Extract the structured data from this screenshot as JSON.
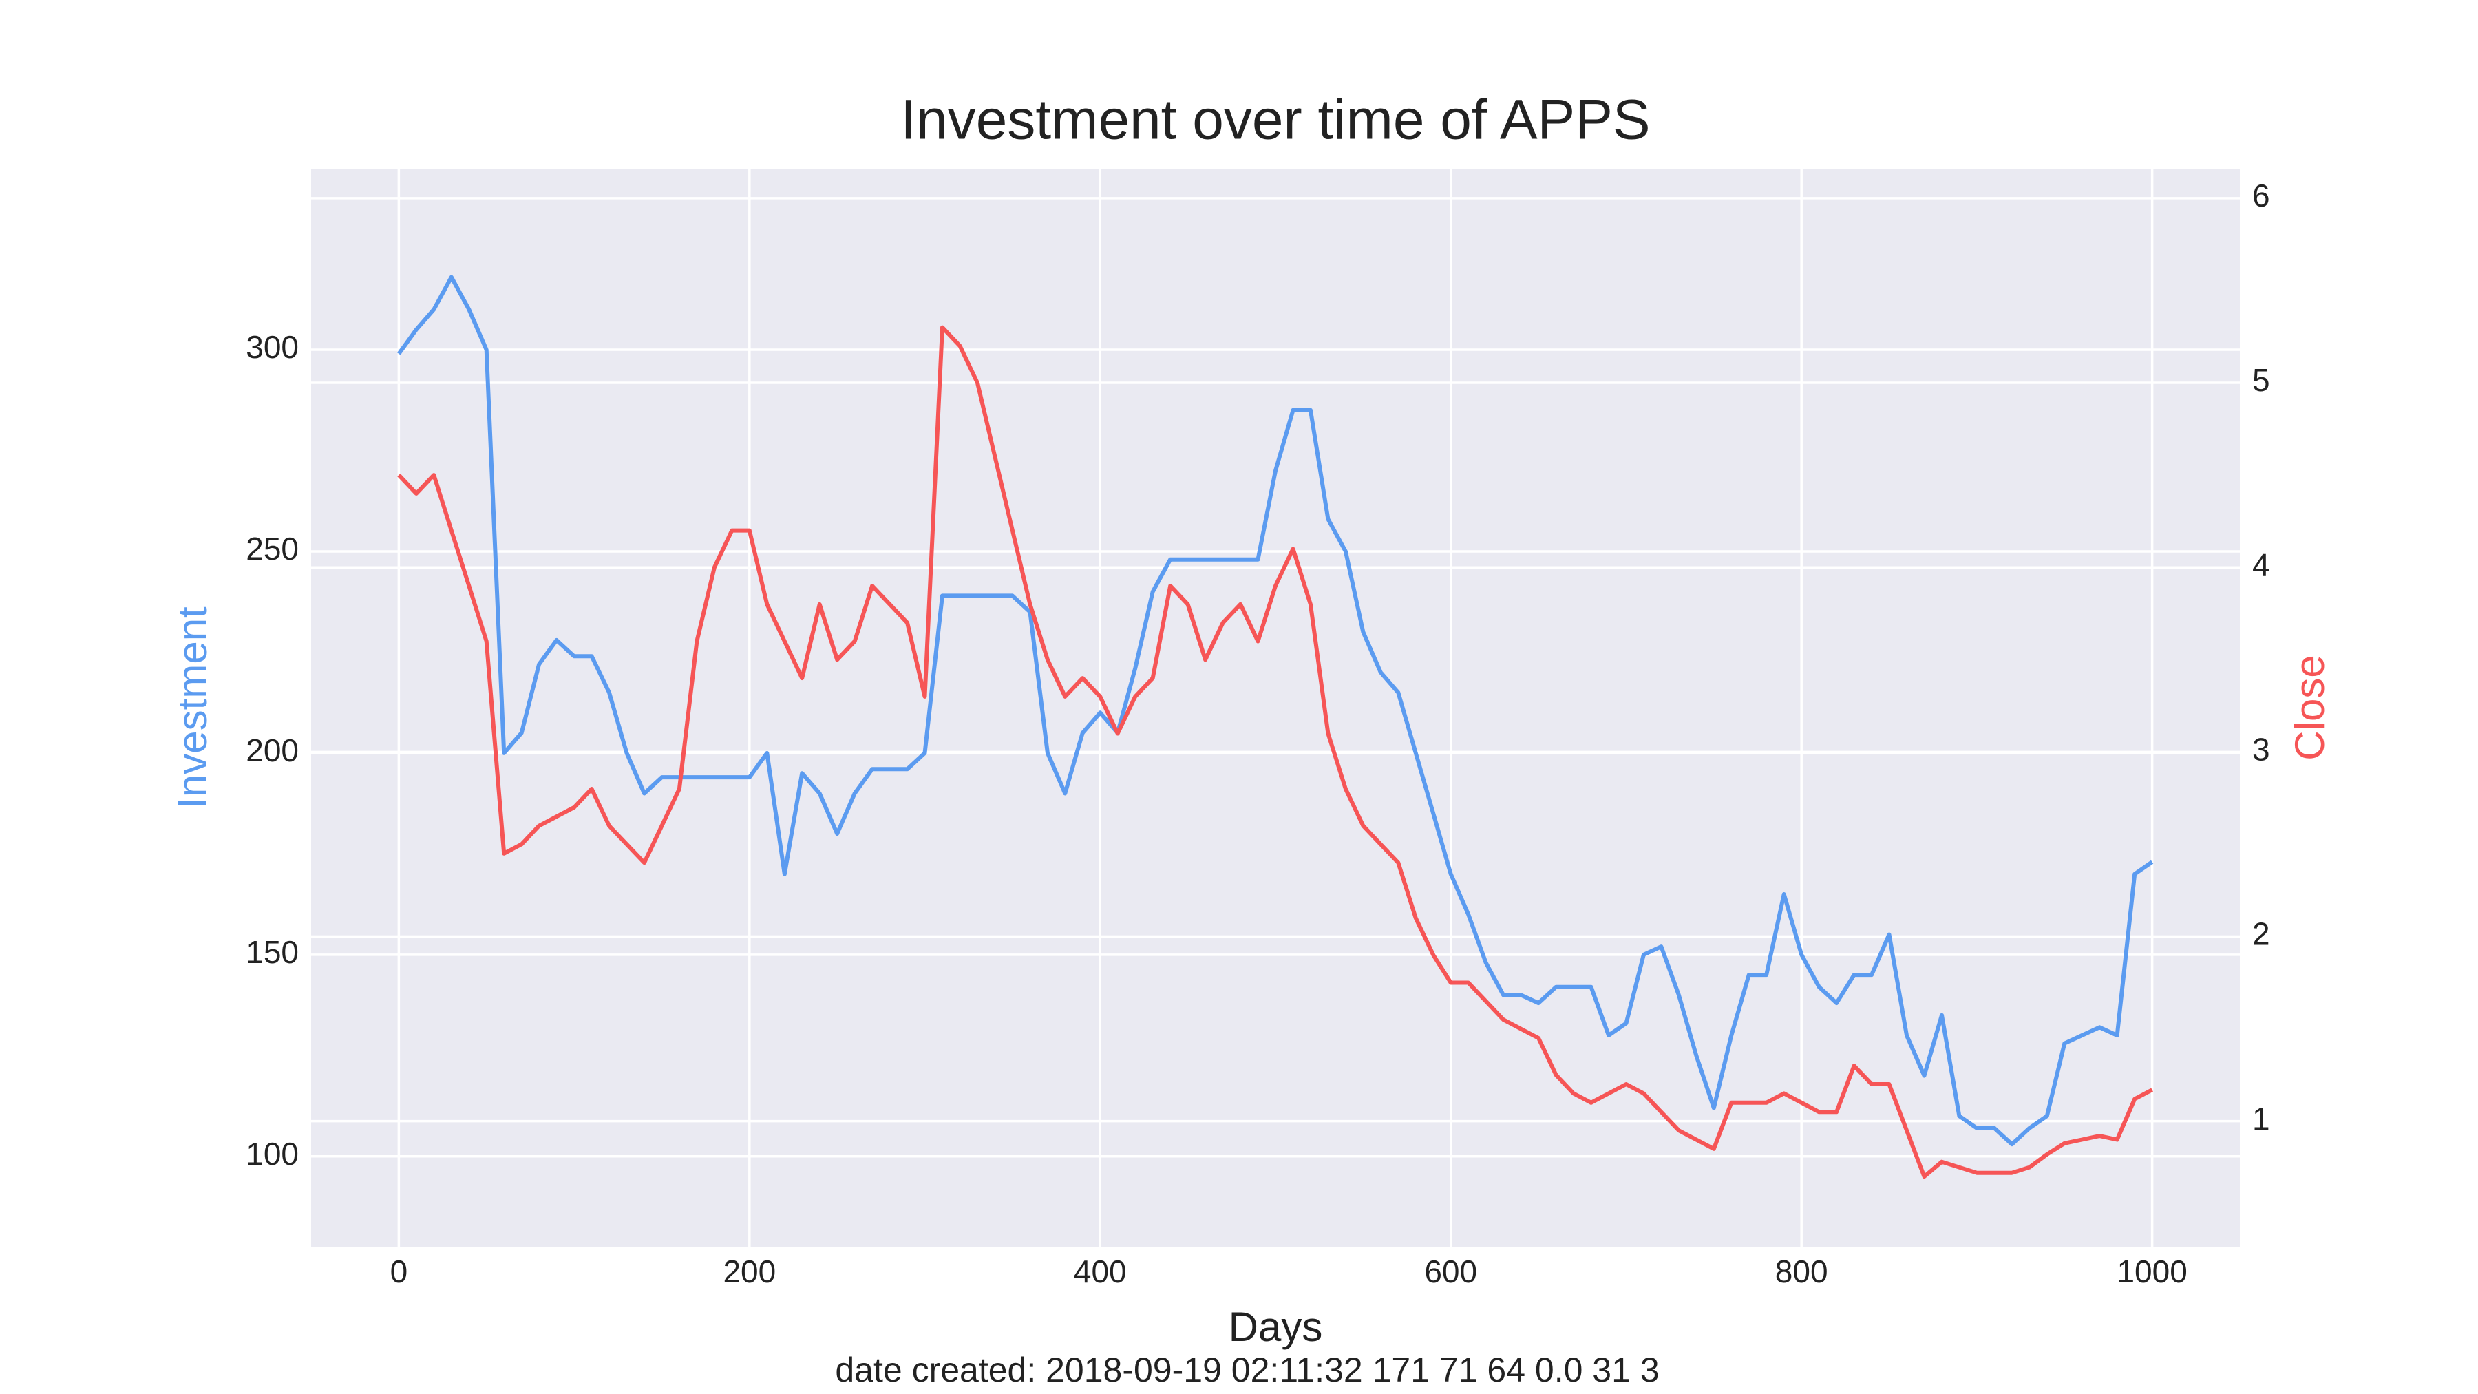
{
  "chart_data": {
    "type": "line",
    "title": "Investment over time of APPS",
    "xlabel": "Days",
    "ylabel": "Investment",
    "y2label": "Close",
    "footnote": "date created: 2018-09-19 02:11:32 171 71 64 0.0 31 3",
    "x": [
      0,
      10,
      20,
      30,
      40,
      50,
      60,
      70,
      80,
      90,
      100,
      110,
      120,
      130,
      140,
      150,
      160,
      170,
      180,
      190,
      200,
      210,
      220,
      230,
      240,
      250,
      260,
      270,
      280,
      290,
      300,
      310,
      320,
      330,
      340,
      350,
      360,
      370,
      380,
      390,
      400,
      410,
      420,
      430,
      440,
      450,
      460,
      470,
      480,
      490,
      500,
      510,
      520,
      530,
      540,
      550,
      560,
      570,
      580,
      590,
      600,
      610,
      620,
      630,
      640,
      650,
      660,
      670,
      680,
      690,
      700,
      710,
      720,
      730,
      740,
      750,
      760,
      770,
      780,
      790,
      800,
      810,
      820,
      830,
      840,
      850,
      860,
      870,
      880,
      890,
      900,
      910,
      920,
      930,
      940,
      950,
      960,
      970,
      980,
      990,
      1000
    ],
    "series": [
      {
        "name": "Investment",
        "color": "#5b9bf0",
        "axis": "y",
        "values": [
          299,
          305,
          310,
          318,
          310,
          300,
          200,
          205,
          222,
          228,
          224,
          224,
          215,
          200,
          190,
          194,
          194,
          194,
          194,
          194,
          194,
          200,
          170,
          195,
          190,
          180,
          190,
          196,
          196,
          196,
          200,
          239,
          239,
          239,
          239,
          239,
          235,
          200,
          190,
          205,
          210,
          205,
          221,
          240,
          248,
          248,
          248,
          248,
          248,
          248,
          270,
          285,
          285,
          258,
          250,
          230,
          220,
          215,
          200,
          185,
          170,
          160,
          148,
          140,
          140,
          138,
          142,
          142,
          142,
          130,
          133,
          150,
          152,
          140,
          125,
          112,
          130,
          145,
          145,
          165,
          150,
          142,
          138,
          145,
          145,
          155,
          130,
          120,
          135,
          110,
          107,
          107,
          103,
          107,
          110,
          128,
          130,
          132,
          130,
          170,
          173
        ]
      },
      {
        "name": "Close",
        "color": "#f65556",
        "axis": "y2",
        "values": [
          4.5,
          4.4,
          4.5,
          4.2,
          3.9,
          3.6,
          2.45,
          2.5,
          2.6,
          2.65,
          2.7,
          2.8,
          2.6,
          2.5,
          2.4,
          2.6,
          2.8,
          3.6,
          4.0,
          4.2,
          4.2,
          3.8,
          3.6,
          3.4,
          3.8,
          3.5,
          3.6,
          3.9,
          3.8,
          3.7,
          3.3,
          5.3,
          5.2,
          5.0,
          4.6,
          4.2,
          3.8,
          3.5,
          3.3,
          3.4,
          3.3,
          3.1,
          3.3,
          3.4,
          3.9,
          3.8,
          3.5,
          3.7,
          3.8,
          3.6,
          3.9,
          4.1,
          3.8,
          3.1,
          2.8,
          2.6,
          2.5,
          2.4,
          2.1,
          1.9,
          1.75,
          1.75,
          1.65,
          1.55,
          1.5,
          1.45,
          1.25,
          1.15,
          1.1,
          1.15,
          1.2,
          1.15,
          1.05,
          0.95,
          0.9,
          0.85,
          1.1,
          1.1,
          1.1,
          1.15,
          1.1,
          1.05,
          1.05,
          1.3,
          1.2,
          1.2,
          0.95,
          0.7,
          0.78,
          0.75,
          0.72,
          0.72,
          0.72,
          0.75,
          0.82,
          0.88,
          0.9,
          0.92,
          0.9,
          1.12,
          1.17
        ]
      }
    ],
    "xlim": [
      -50,
      1050
    ],
    "xticks": [
      0,
      200,
      400,
      600,
      800,
      1000
    ],
    "ylim": [
      77.6,
      344.9
    ],
    "yticks": [
      100,
      150,
      200,
      250,
      300
    ],
    "y2lim": [
      0.32,
      6.16
    ],
    "y2ticks": [
      1,
      2,
      3,
      4,
      5,
      6
    ],
    "grid": true,
    "background": "#eaeaf2"
  }
}
